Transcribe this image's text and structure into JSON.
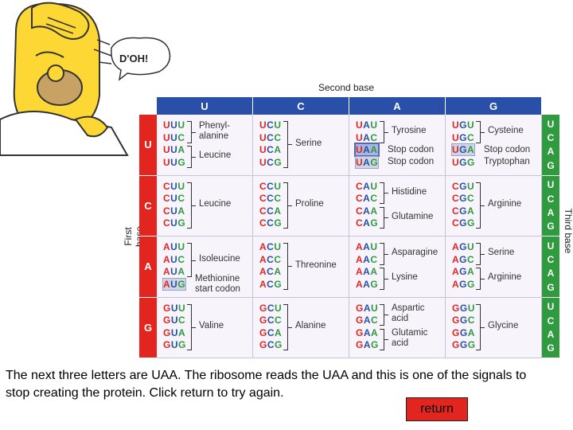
{
  "cartoon": {
    "speech": "D'OH!",
    "icon": "homer-cartoon-icon"
  },
  "axes": {
    "second": "Second base",
    "first": "First base",
    "third": "Third base"
  },
  "second_bases": [
    "U",
    "C",
    "A",
    "G"
  ],
  "first_bases": [
    "U",
    "C",
    "A",
    "G"
  ],
  "third_bases": [
    "U",
    "C",
    "A",
    "G"
  ],
  "cells": [
    {
      "codons": [
        "UUU",
        "UUC",
        "UUA",
        "UUG"
      ],
      "groups": [
        {
          "from": 0,
          "to": 1,
          "label": "Phenyl-\nalanine"
        },
        {
          "from": 2,
          "to": 3,
          "label": "Leucine"
        }
      ]
    },
    {
      "codons": [
        "UCU",
        "UCC",
        "UCA",
        "UCG"
      ],
      "groups": [
        {
          "from": 0,
          "to": 3,
          "label": "Serine"
        }
      ]
    },
    {
      "codons": [
        "UAU",
        "UAC",
        "UAA",
        "UAG"
      ],
      "groups": [
        {
          "from": 0,
          "to": 1,
          "label": "Tyrosine"
        },
        {
          "from": 2,
          "to": 2,
          "label": "Stop codon",
          "single": true
        },
        {
          "from": 3,
          "to": 3,
          "label": "Stop codon",
          "single": true
        }
      ]
    },
    {
      "codons": [
        "UGU",
        "UGC",
        "UGA",
        "UGG"
      ],
      "groups": [
        {
          "from": 0,
          "to": 1,
          "label": "Cysteine"
        },
        {
          "from": 2,
          "to": 2,
          "label": "Stop codon",
          "single": true
        },
        {
          "from": 3,
          "to": 3,
          "label": "Tryptophan",
          "single": true
        }
      ]
    },
    {
      "codons": [
        "CUU",
        "CUC",
        "CUA",
        "CUG"
      ],
      "groups": [
        {
          "from": 0,
          "to": 3,
          "label": "Leucine"
        }
      ]
    },
    {
      "codons": [
        "CCU",
        "CCC",
        "CCA",
        "CCG"
      ],
      "groups": [
        {
          "from": 0,
          "to": 3,
          "label": "Proline"
        }
      ]
    },
    {
      "codons": [
        "CAU",
        "CAC",
        "CAA",
        "CAG"
      ],
      "groups": [
        {
          "from": 0,
          "to": 1,
          "label": "Histidine"
        },
        {
          "from": 2,
          "to": 3,
          "label": "Glutamine"
        }
      ]
    },
    {
      "codons": [
        "CGU",
        "CGC",
        "CGA",
        "CGG"
      ],
      "groups": [
        {
          "from": 0,
          "to": 3,
          "label": "Arginine"
        }
      ]
    },
    {
      "codons": [
        "AUU",
        "AUC",
        "AUA",
        "AUG"
      ],
      "groups": [
        {
          "from": 0,
          "to": 2,
          "label": "Isoleucine"
        },
        {
          "from": 3,
          "to": 3,
          "label": "Methionine\nstart codon",
          "single": true
        }
      ]
    },
    {
      "codons": [
        "ACU",
        "ACC",
        "ACA",
        "ACG"
      ],
      "groups": [
        {
          "from": 0,
          "to": 3,
          "label": "Threonine"
        }
      ]
    },
    {
      "codons": [
        "AAU",
        "AAC",
        "AAA",
        "AAG"
      ],
      "groups": [
        {
          "from": 0,
          "to": 1,
          "label": "Asparagine"
        },
        {
          "from": 2,
          "to": 3,
          "label": "Lysine"
        }
      ]
    },
    {
      "codons": [
        "AGU",
        "AGC",
        "AGA",
        "AGG"
      ],
      "groups": [
        {
          "from": 0,
          "to": 1,
          "label": "Serine"
        },
        {
          "from": 2,
          "to": 3,
          "label": "Arginine"
        }
      ]
    },
    {
      "codons": [
        "GUU",
        "GUC",
        "GUA",
        "GUG"
      ],
      "groups": [
        {
          "from": 0,
          "to": 3,
          "label": "Valine"
        }
      ]
    },
    {
      "codons": [
        "GCU",
        "GCC",
        "GCA",
        "GCG"
      ],
      "groups": [
        {
          "from": 0,
          "to": 3,
          "label": "Alanine"
        }
      ]
    },
    {
      "codons": [
        "GAU",
        "GAC",
        "GAA",
        "GAG"
      ],
      "groups": [
        {
          "from": 0,
          "to": 1,
          "label": "Aspartic\nacid"
        },
        {
          "from": 2,
          "to": 3,
          "label": "Glutamic\nacid"
        }
      ]
    },
    {
      "codons": [
        "GGU",
        "GGC",
        "GGA",
        "GGG"
      ],
      "groups": [
        {
          "from": 0,
          "to": 3,
          "label": "Glycine"
        }
      ]
    }
  ],
  "highlighted_codons": [
    "UAA"
  ],
  "shaded_codons": [
    "UAG",
    "UGA",
    "AUG"
  ],
  "message": "The next three letters are UAA. The ribosome reads the UAA and this is one of the signals to stop creating the protein. Click return to try again.",
  "return_label": "return",
  "colors": {
    "first_base": "#e2261f",
    "second_base": "#2a4fa8",
    "third_base": "#2f9a3e",
    "return_button": "#e2261f"
  }
}
